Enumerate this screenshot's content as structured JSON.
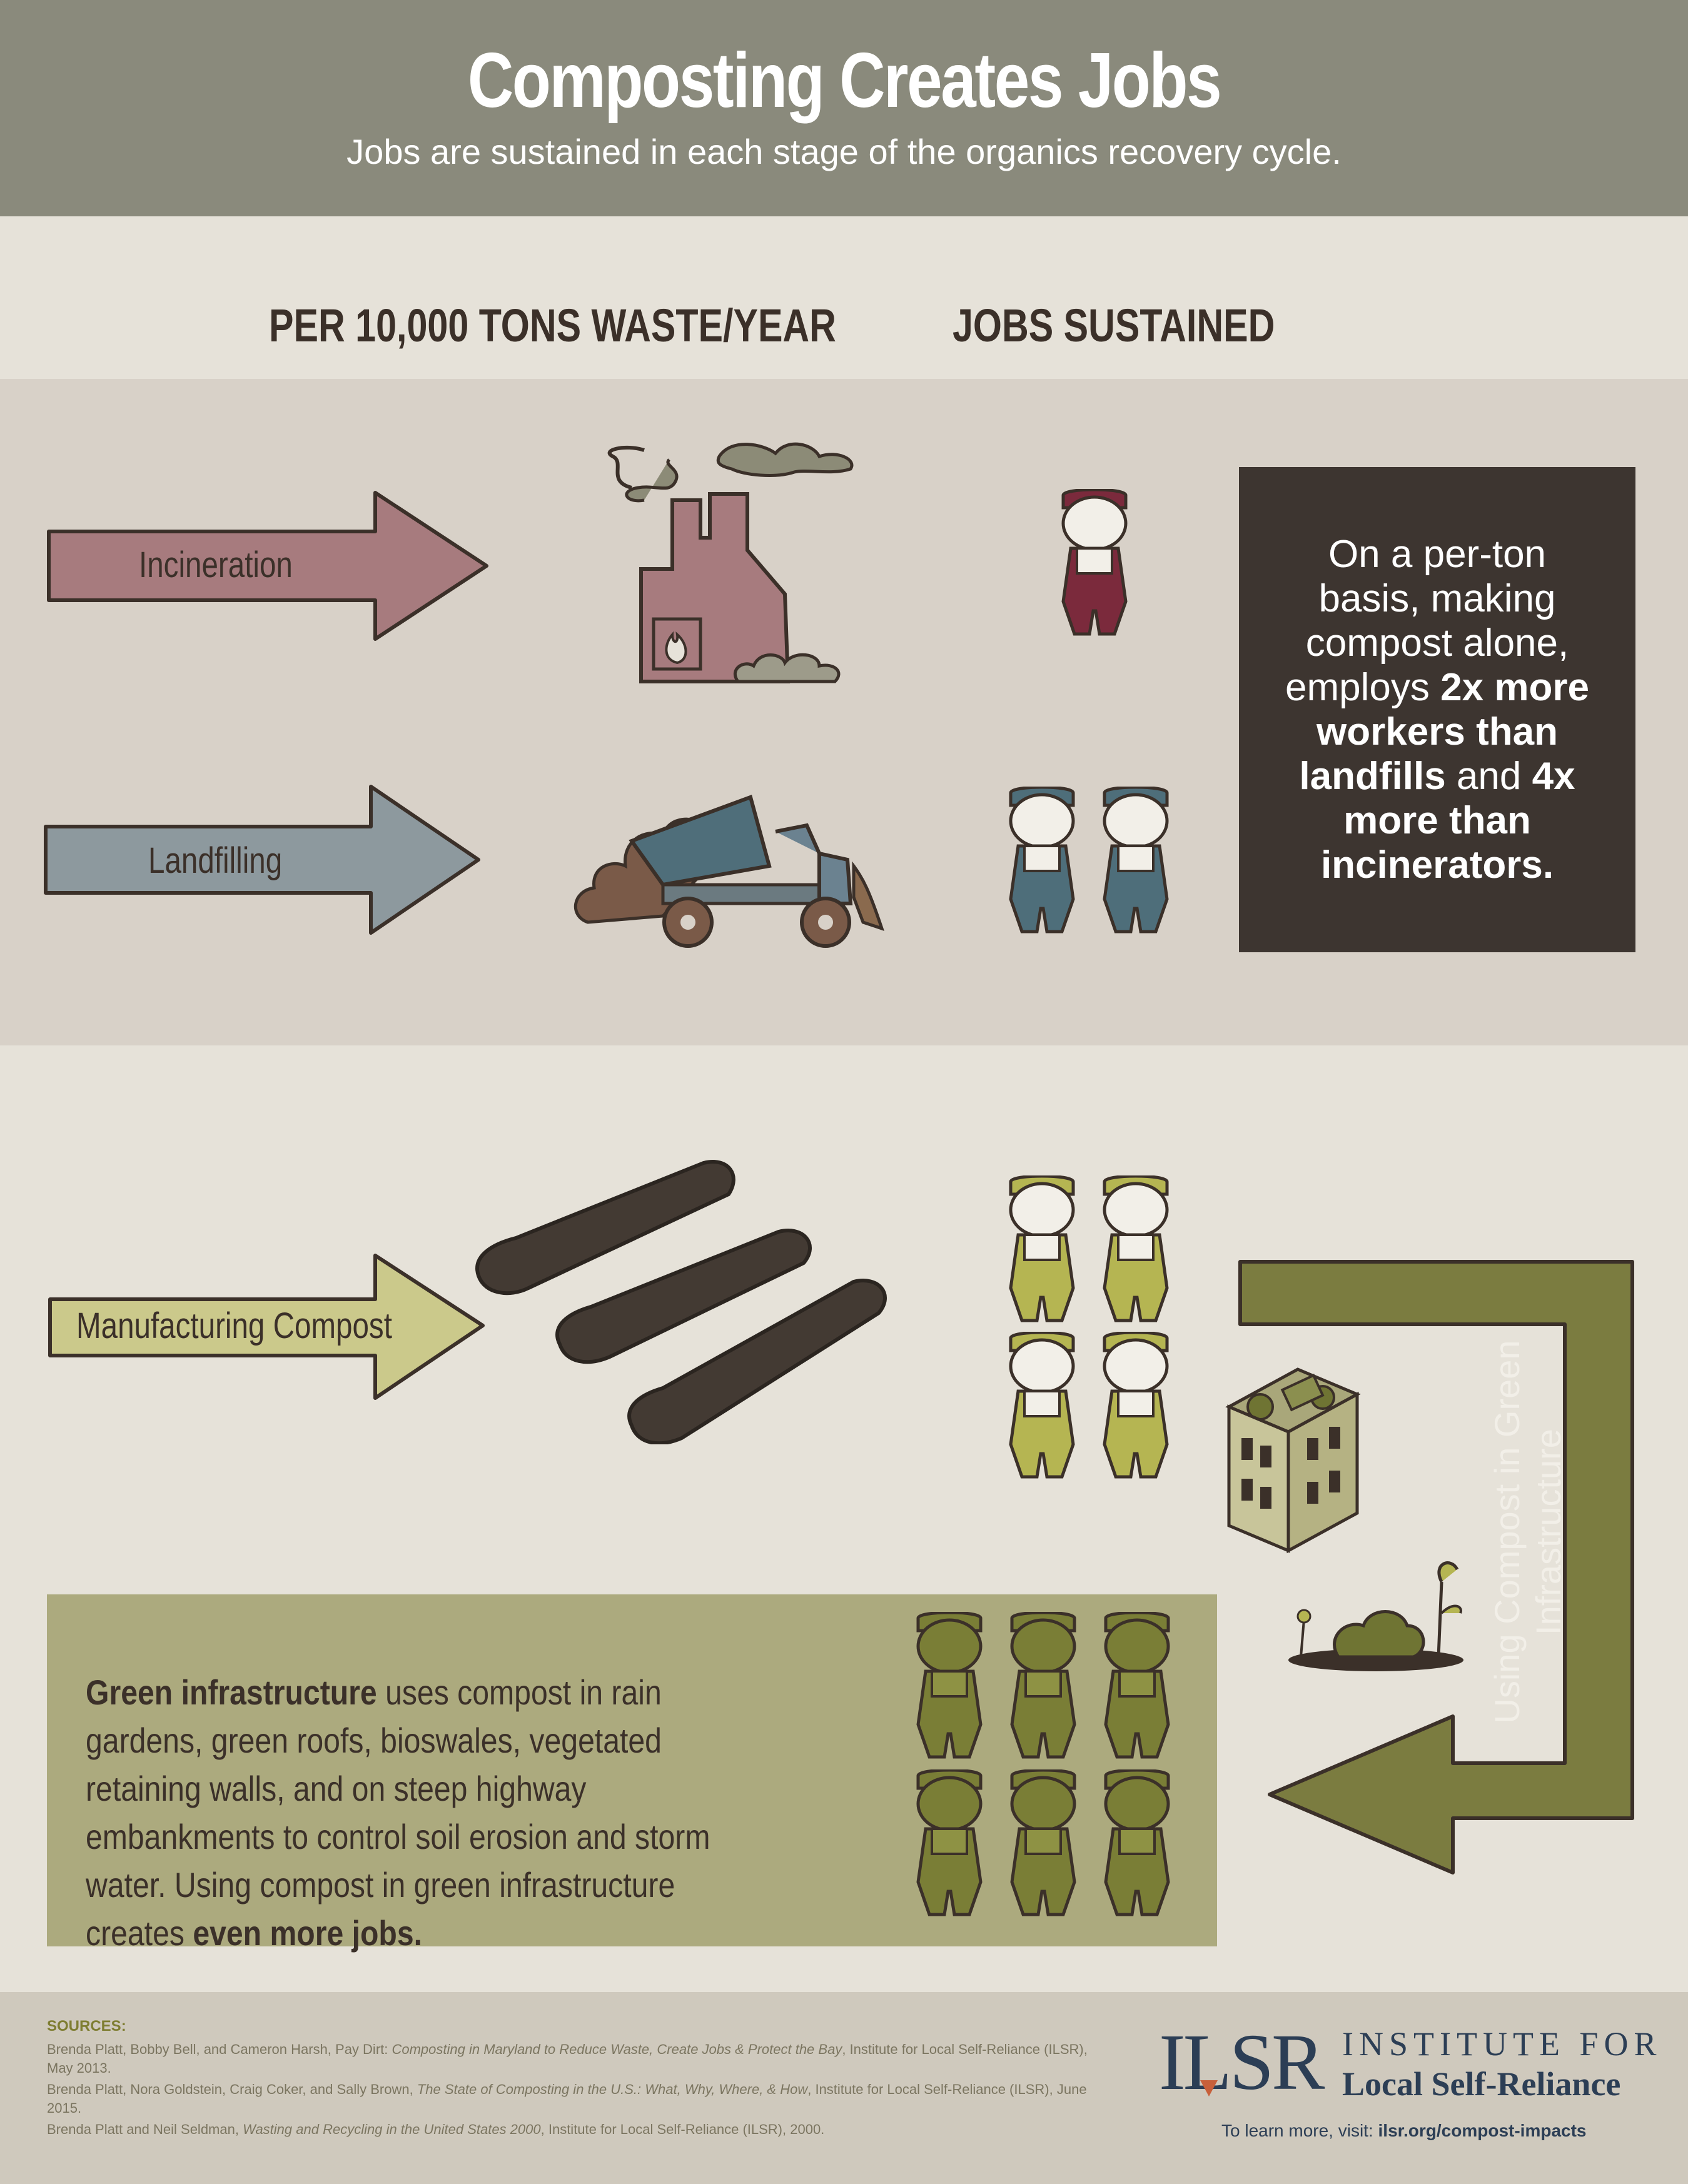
{
  "header": {
    "title": "Composting Creates Jobs",
    "subtitle": "Jobs are sustained in each stage of the organics recovery cycle."
  },
  "columns": {
    "left": "PER 10,000 TONS WASTE/YEAR",
    "right": "JOBS SUSTAINED"
  },
  "rows": [
    {
      "label": "Incineration",
      "workers": 1,
      "color": "#a77b7e",
      "worker_color": "#7b2a3c"
    },
    {
      "label": "Landfilling",
      "workers": 2,
      "color": "#8d999e",
      "worker_color": "#4e6e7a"
    },
    {
      "label": "Manufacturing Compost",
      "workers": 4,
      "color": "#cbc98b",
      "worker_color": "#b5b552"
    }
  ],
  "callout": {
    "line1": "On a per-ton",
    "line2": "basis, making",
    "line3": "compost alone,",
    "line4_normal": "employs ",
    "line4_bold": "2x more",
    "line5": "workers than",
    "line6_bold": "landfills",
    "line6_normal": " and ",
    "line6_bold2": "4x",
    "line7": "more than",
    "line8": "incinerators."
  },
  "green_infrastructure": {
    "bold_lead": "Green infrastructure",
    "text_middle": " uses compost in rain gardens, green roofs, bioswales, vegetated retaining walls, and on steep highway embankments to control soil erosion and storm water. Using compost in green infrastructure creates ",
    "bold_end": "even more jobs.",
    "workers": 6,
    "worker_color": "#7a7e36"
  },
  "loop_arrow": {
    "label_line1": "Using Compost in Green",
    "label_line2": "Infrastructure",
    "color": "#7b7c40"
  },
  "sources": {
    "heading": "SOURCES:",
    "items": [
      {
        "normal": "Brenda Platt, Bobby Bell, and Cameron Harsh, Pay Dirt: ",
        "italic": "Composting in Maryland to Reduce Waste, Create Jobs & Protect the Bay",
        "tail": ", Institute for Local Self-Reliance (ILSR), May 2013."
      },
      {
        "normal": "Brenda Platt, Nora Goldstein, Craig Coker, and Sally Brown, ",
        "italic": "The State of Composting in the U.S.: What, Why, Where, & How",
        "tail": ", Institute for Local Self-Reliance (ILSR), June 2015."
      },
      {
        "normal": "Brenda Platt and Neil Seldman, ",
        "italic": "Wasting and Recycling in the United States 2000",
        "tail": ", Institute for Local Self-Reliance (ILSR), 2000."
      }
    ]
  },
  "logo": {
    "mark": "ILSR",
    "line1": "INSTITUTE FOR",
    "line2": "Local Self-Reliance"
  },
  "learn_more": {
    "prefix": "To learn more, visit:",
    "link": "ilsr.org/compost-impacts"
  }
}
